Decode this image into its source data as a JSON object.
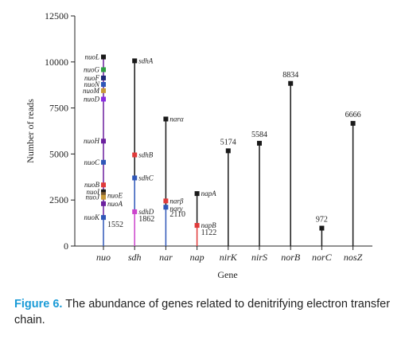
{
  "caption": {
    "label": "Figure 6.",
    "text": " The abundance of genes related to denitrifying electron transfer chain."
  },
  "colors": {
    "black": "#1a1a1a",
    "green": "#2e9e44",
    "navy": "#1f2a7a",
    "blue": "#2f57b8",
    "purple": "#6b1f9e",
    "orange": "#c89a3a",
    "brown": "#7a5a30",
    "violet": "#8a2be2",
    "red": "#e03a3a",
    "magenta": "#cc44cc"
  },
  "chart_data": {
    "type": "lollipop",
    "xlabel": "Gene",
    "ylabel": "Number of reads",
    "ylim": [
      0,
      12500
    ],
    "yticks": [
      0,
      2500,
      5000,
      7500,
      10000,
      12500
    ],
    "categories": [
      "nuo",
      "sdh",
      "nar",
      "nap",
      "nirK",
      "nirS",
      "norB",
      "norC",
      "nosZ"
    ],
    "genes": [
      {
        "category": "nuo",
        "name": "nuoL",
        "value": 10270,
        "color": "#1a1a1a",
        "label": "nuoL"
      },
      {
        "category": "nuo",
        "name": "nuoG",
        "value": 9580,
        "color": "#2e9e44",
        "label": "nuoG"
      },
      {
        "category": "nuo",
        "name": "nuoF",
        "value": 9130,
        "color": "#1f2a7a",
        "label": "nuoF"
      },
      {
        "category": "nuo",
        "name": "nuoN",
        "value": 8780,
        "color": "#2f57b8",
        "label": "nuoN"
      },
      {
        "category": "nuo",
        "name": "nuoM",
        "value": 8440,
        "color": "#c89a3a",
        "label": "nuoM"
      },
      {
        "category": "nuo",
        "name": "nuoD",
        "value": 7980,
        "color": "#8a2be2",
        "label": "nuoD"
      },
      {
        "category": "nuo",
        "name": "nuoH",
        "value": 5700,
        "color": "#6b1f9e",
        "label": "nuoH"
      },
      {
        "category": "nuo",
        "name": "nuoC",
        "value": 4550,
        "color": "#2f57b8",
        "label": "nuoC"
      },
      {
        "category": "nuo",
        "name": "nuoB",
        "value": 3320,
        "color": "#e03a3a",
        "label": "nuoB"
      },
      {
        "category": "nuo",
        "name": "nuoI",
        "value": 2950,
        "color": "#1a1a1a",
        "label": "nuoI"
      },
      {
        "category": "nuo",
        "name": "nuoE",
        "value": 2800,
        "color": "#7a5a30",
        "label": "nuoE"
      },
      {
        "category": "nuo",
        "name": "nuoJ",
        "value": 2650,
        "color": "#c89a3a",
        "label": "nuoJ"
      },
      {
        "category": "nuo",
        "name": "nuoA",
        "value": 2300,
        "color": "#6b1f9e",
        "label": "nuoA"
      },
      {
        "category": "nuo",
        "name": "nuoK",
        "value": 1552,
        "color": "#2f57b8",
        "label": "nuoK"
      },
      {
        "category": "sdh",
        "name": "sdhA",
        "value": 10060,
        "color": "#1a1a1a",
        "label": "sdhA"
      },
      {
        "category": "sdh",
        "name": "sdhB",
        "value": 4950,
        "color": "#e03a3a",
        "label": "sdhB"
      },
      {
        "category": "sdh",
        "name": "sdhC",
        "value": 3700,
        "color": "#2f57b8",
        "label": "sdhC"
      },
      {
        "category": "sdh",
        "name": "sdhD",
        "value": 1862,
        "color": "#cc44cc",
        "label": "sdhD"
      },
      {
        "category": "nar",
        "name": "narα",
        "value": 6900,
        "color": "#1a1a1a",
        "label": "narα"
      },
      {
        "category": "nar",
        "name": "narβ",
        "value": 2450,
        "color": "#e03a3a",
        "label": "narβ"
      },
      {
        "category": "nar",
        "name": "narγ",
        "value": 2110,
        "color": "#2f57b8",
        "label": "narγ"
      },
      {
        "category": "nap",
        "name": "napA",
        "value": 2850,
        "color": "#1a1a1a",
        "label": "napA"
      },
      {
        "category": "nap",
        "name": "napB",
        "value": 1122,
        "color": "#e03a3a",
        "label": "napB"
      },
      {
        "category": "nirK",
        "name": "nirK",
        "value": 5174,
        "color": "#1a1a1a",
        "label": "5174"
      },
      {
        "category": "nirS",
        "name": "nirS",
        "value": 5584,
        "color": "#1a1a1a",
        "label": "5584"
      },
      {
        "category": "norB",
        "name": "norB",
        "value": 8834,
        "color": "#1a1a1a",
        "label": "8834"
      },
      {
        "category": "norC",
        "name": "norC",
        "value": 972,
        "color": "#1a1a1a",
        "label": "972"
      },
      {
        "category": "nosZ",
        "name": "nosZ",
        "value": 6666,
        "color": "#1a1a1a",
        "label": "6666"
      }
    ],
    "value_labels": [
      {
        "category": "nuo",
        "text": "1552"
      },
      {
        "category": "sdh",
        "text": "1862"
      },
      {
        "category": "nar",
        "text": "2110"
      },
      {
        "category": "nap",
        "text": "1122"
      }
    ],
    "stems": [
      {
        "category": "nuo",
        "segments": [
          {
            "from": 0,
            "to": 1552,
            "color": "#2f57b8"
          },
          {
            "from": 1552,
            "to": 10270,
            "color": "#6b1f9e"
          }
        ]
      },
      {
        "category": "sdh",
        "segments": [
          {
            "from": 0,
            "to": 1862,
            "color": "#cc44cc"
          },
          {
            "from": 1862,
            "to": 3700,
            "color": "#2f57b8"
          },
          {
            "from": 3700,
            "to": 10060,
            "color": "#1a1a1a"
          }
        ]
      },
      {
        "category": "nar",
        "segments": [
          {
            "from": 0,
            "to": 2110,
            "color": "#2f57b8"
          },
          {
            "from": 2110,
            "to": 6900,
            "color": "#1a1a1a"
          }
        ]
      },
      {
        "category": "nap",
        "segments": [
          {
            "from": 0,
            "to": 1122,
            "color": "#e03a3a"
          },
          {
            "from": 1122,
            "to": 2850,
            "color": "#1a1a1a"
          }
        ]
      },
      {
        "category": "nirK",
        "segments": [
          {
            "from": 0,
            "to": 5174,
            "color": "#1a1a1a"
          }
        ]
      },
      {
        "category": "nirS",
        "segments": [
          {
            "from": 0,
            "to": 5584,
            "color": "#1a1a1a"
          }
        ]
      },
      {
        "category": "norB",
        "segments": [
          {
            "from": 0,
            "to": 8834,
            "color": "#1a1a1a"
          }
        ]
      },
      {
        "category": "norC",
        "segments": [
          {
            "from": 0,
            "to": 972,
            "color": "#1a1a1a"
          }
        ]
      },
      {
        "category": "nosZ",
        "segments": [
          {
            "from": 0,
            "to": 6666,
            "color": "#1a1a1a"
          }
        ]
      }
    ],
    "grid": false,
    "legend": "none"
  }
}
